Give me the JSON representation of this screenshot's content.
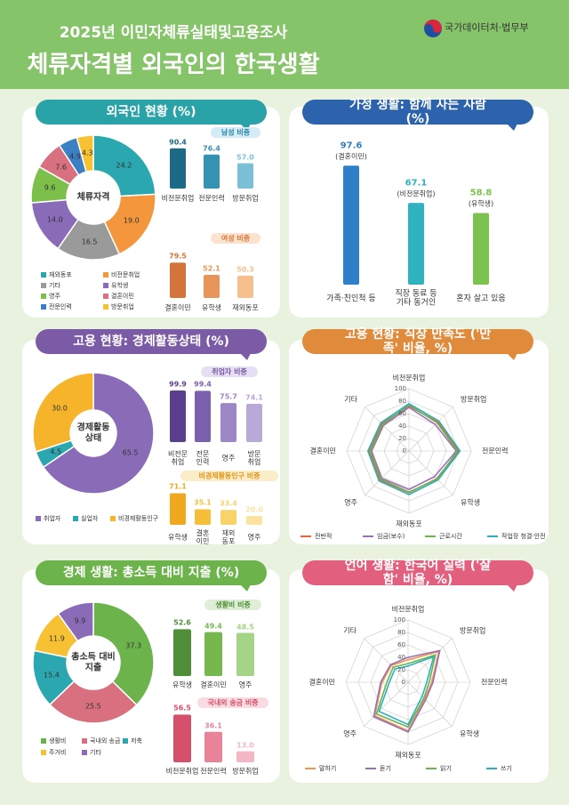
{
  "header": {
    "subtitle": "2025년 이민자체류실태및고용조사",
    "title": "체류자격별 외국인의 한국생활",
    "source": "국가데이터처·법무부"
  },
  "chart_data": [
    {
      "type": "donut",
      "title": "외국인 현황 (%)",
      "center_label": "체류자격",
      "categories": [
        "재외동포",
        "비전문취업",
        "기타",
        "유학생",
        "영주",
        "결혼이민",
        "전문인력",
        "방문취업"
      ],
      "values": [
        24.2,
        19.0,
        16.5,
        14.0,
        9.6,
        7.6,
        4.9,
        4.3
      ],
      "value_labels": [
        "24.2",
        "19.0",
        "16.5",
        "14.0",
        "9.6",
        "7.6",
        "4.9",
        "4.3"
      ],
      "colors": [
        "#2ba7b0",
        "#f3963c",
        "#9a9a9a",
        "#8a6bb8",
        "#7cbf4a",
        "#d9707f",
        "#3b7fc4",
        "#f6c233"
      ],
      "legend": true
    },
    {
      "type": "bar",
      "title": "남성 비중",
      "categories": [
        "비전문취업",
        "전문인력",
        "방문취업"
      ],
      "values": [
        90.4,
        76.4,
        57.0
      ],
      "value_labels": [
        "90.4",
        "76.4",
        "57.0"
      ],
      "colors": [
        "#1d6a86",
        "#3592b3",
        "#7cc0d8"
      ]
    },
    {
      "type": "bar",
      "title": "여성 비중",
      "categories": [
        "결혼이민",
        "유학생",
        "재외동포"
      ],
      "values": [
        79.5,
        52.1,
        50.3
      ],
      "value_labels": [
        "79.5",
        "52.1",
        "50.3"
      ],
      "colors": [
        "#d4733a",
        "#e8955a",
        "#f5c08e"
      ]
    },
    {
      "type": "bar",
      "title": "가정 생활: 함께 사는 사람 (%)",
      "categories": [
        "가족·친인척 등",
        "직장 동료 등\n기타 동거인",
        "혼자 살고 있음"
      ],
      "values": [
        97.6,
        67.1,
        58.8
      ],
      "value_labels": [
        "97.6",
        "67.1",
        "58.8"
      ],
      "annotations": [
        "(결혼이민)",
        "(비전문취업)",
        "(유학생)"
      ],
      "colors": [
        "#2f7fc8",
        "#2fb3c0",
        "#7cc24e"
      ]
    },
    {
      "type": "donut",
      "title": "고용 현황: 경제활동상태 (%)",
      "center_label": "경제활동\n상태",
      "categories": [
        "취업자",
        "실업자",
        "비경제활동인구"
      ],
      "values": [
        65.5,
        4.5,
        30.0
      ],
      "value_labels": [
        "65.5",
        "4.5",
        "30.0"
      ],
      "colors": [
        "#8a6bb8",
        "#2ba7b0",
        "#f6b42a"
      ],
      "legend": true
    },
    {
      "type": "bar",
      "title": "취업자 비중",
      "categories": [
        "비전문\n취업",
        "전문\n인력",
        "영주",
        "방문\n취업"
      ],
      "values": [
        99.9,
        99.4,
        75.7,
        74.1
      ],
      "value_labels": [
        "99.9",
        "99.4",
        "75.7",
        "74.1"
      ],
      "colors": [
        "#5b3f8f",
        "#7c5fae",
        "#9b86c6",
        "#b9a9d8"
      ]
    },
    {
      "type": "bar",
      "title": "비경제활동인구 비중",
      "categories": [
        "유학생",
        "결혼\n이민",
        "재외\n동포",
        "영주"
      ],
      "values": [
        71.1,
        35.1,
        33.4,
        20.0
      ],
      "value_labels": [
        "71.1",
        "35.1",
        "33.4",
        "20.0"
      ],
      "colors": [
        "#f0a81e",
        "#f6bf3a",
        "#f8d36a",
        "#fbe3a0"
      ]
    },
    {
      "type": "radar",
      "title": "고용 현황: 직장 만족도 ('만족' 비율, %)",
      "categories": [
        "비전문취업",
        "방문취업",
        "전문인력",
        "유학생",
        "재외동포",
        "영주",
        "결혼이민",
        "기타"
      ],
      "ylim": [
        0,
        100
      ],
      "yticks": [
        0,
        20,
        40,
        60,
        80,
        100
      ],
      "grid": true,
      "series": [
        {
          "name": "전반적",
          "color": "#e8643c",
          "values": [
            72,
            66,
            80,
            63,
            67,
            66,
            64,
            62
          ]
        },
        {
          "name": "임금(보수)",
          "color": "#9b6fc0",
          "values": [
            70,
            60,
            76,
            58,
            62,
            62,
            60,
            58
          ]
        },
        {
          "name": "근로시간",
          "color": "#6bb34a",
          "values": [
            74,
            64,
            78,
            64,
            66,
            64,
            62,
            60
          ]
        },
        {
          "name": "작업장 청결·안전",
          "color": "#2ab0c0",
          "values": [
            76,
            68,
            82,
            66,
            70,
            68,
            66,
            64
          ]
        }
      ]
    },
    {
      "type": "donut",
      "title": "경제 생활: 총소득 대비 지출 (%)",
      "center_label": "총소득 대비\n지출",
      "categories": [
        "생활비",
        "국내외 송금",
        "저축",
        "주거비",
        "기타"
      ],
      "values": [
        37.3,
        25.5,
        15.4,
        11.9,
        9.9
      ],
      "value_labels": [
        "37.3",
        "25.5",
        "15.4",
        "11.9",
        "9.9"
      ],
      "colors": [
        "#6bb34a",
        "#d9707f",
        "#2ba7b0",
        "#f6c233",
        "#8a6bb8"
      ],
      "legend": true
    },
    {
      "type": "bar",
      "title": "생활비 비중",
      "categories": [
        "유학생",
        "결혼이민",
        "영주"
      ],
      "values": [
        52.6,
        49.4,
        48.5
      ],
      "value_labels": [
        "52.6",
        "49.4",
        "48.5"
      ],
      "colors": [
        "#4f8f3a",
        "#76b84e",
        "#a6d486"
      ]
    },
    {
      "type": "bar",
      "title": "국내외 송금 비중",
      "categories": [
        "비전문취업",
        "전문인력",
        "방문취업"
      ],
      "values": [
        56.5,
        36.1,
        13.0
      ],
      "value_labels": [
        "56.5",
        "36.1",
        "13.0"
      ],
      "colors": [
        "#d64f6b",
        "#e98399",
        "#f4b8c4"
      ]
    },
    {
      "type": "radar",
      "title": "언어 생활: 한국어 실력 ('잘함' 비율, %)",
      "categories": [
        "비전문취업",
        "방문취업",
        "전문인력",
        "유학생",
        "재외동포",
        "영주",
        "결혼이민",
        "기타"
      ],
      "ylim": [
        0,
        100
      ],
      "yticks": [
        0,
        20,
        40,
        60,
        80,
        100
      ],
      "grid": true,
      "series": [
        {
          "name": "말하기",
          "color": "#f0964a",
          "values": [
            36,
            70,
            38,
            38,
            78,
            76,
            42,
            38
          ]
        },
        {
          "name": "듣기",
          "color": "#9b6fc0",
          "values": [
            40,
            72,
            40,
            40,
            80,
            78,
            44,
            40
          ]
        },
        {
          "name": "읽기",
          "color": "#6bb34a",
          "values": [
            30,
            62,
            34,
            36,
            72,
            72,
            34,
            34
          ]
        },
        {
          "name": "쓰기",
          "color": "#2ab0c0",
          "values": [
            26,
            58,
            30,
            32,
            68,
            66,
            30,
            30
          ]
        }
      ]
    }
  ]
}
